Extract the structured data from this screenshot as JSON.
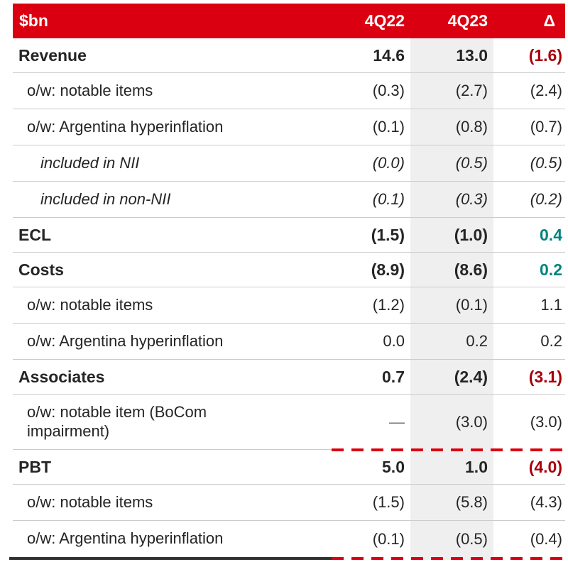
{
  "title": "Quarterly P&L summary table",
  "unit_label": "$bn",
  "colors": {
    "header_bg": "#db0011",
    "header_text": "#ffffff",
    "negative_red": "#a8000b",
    "positive_teal": "#00847f",
    "body_text": "#252525",
    "muted_dash": "#767676",
    "column_band": "#efefef",
    "divider": "#cccccc",
    "dashed_rule_red": "#db0011",
    "end_rule_dark": "#333333"
  },
  "header": {
    "metric": "$bn",
    "prev_period": "4Q22",
    "curr_period": "4Q23",
    "delta": "Δ"
  },
  "rows": [
    {
      "label": "Revenue",
      "indent": 0,
      "emphasis": "main",
      "values": [
        "14.6",
        "13.0",
        "(1.6)"
      ],
      "value_colors": [
        "default",
        "default",
        "red"
      ],
      "divider": "solid"
    },
    {
      "label": "o/w: notable items",
      "indent": 1,
      "emphasis": "sub",
      "values": [
        "(0.3)",
        "(2.7)",
        "(2.4)"
      ],
      "value_colors": [
        "default",
        "default",
        "default"
      ],
      "divider": "solid"
    },
    {
      "label": "o/w: Argentina hyperinflation",
      "indent": 1,
      "emphasis": "sub",
      "values": [
        "(0.1)",
        "(0.8)",
        "(0.7)"
      ],
      "value_colors": [
        "default",
        "default",
        "default"
      ],
      "divider": "solid"
    },
    {
      "label": "included in NII",
      "indent": 2,
      "emphasis": "sub-italic",
      "values": [
        "(0.0)",
        "(0.5)",
        "(0.5)"
      ],
      "value_colors": [
        "default",
        "default",
        "default"
      ],
      "divider": "solid"
    },
    {
      "label": "included in non-NII",
      "indent": 2,
      "emphasis": "sub-italic",
      "values": [
        "(0.1)",
        "(0.3)",
        "(0.2)"
      ],
      "value_colors": [
        "default",
        "default",
        "default"
      ],
      "divider": "solid"
    },
    {
      "label": "ECL",
      "indent": 0,
      "emphasis": "main",
      "values": [
        "(1.5)",
        "(1.0)",
        "0.4"
      ],
      "value_colors": [
        "default",
        "default",
        "teal"
      ],
      "divider": "solid"
    },
    {
      "label": "Costs",
      "indent": 0,
      "emphasis": "main",
      "values": [
        "(8.9)",
        "(8.6)",
        "0.2"
      ],
      "value_colors": [
        "default",
        "default",
        "teal"
      ],
      "divider": "solid"
    },
    {
      "label": "o/w: notable items",
      "indent": 1,
      "emphasis": "sub",
      "values": [
        "(1.2)",
        "(0.1)",
        "1.1"
      ],
      "value_colors": [
        "default",
        "default",
        "default"
      ],
      "divider": "solid"
    },
    {
      "label": "o/w: Argentina hyperinflation",
      "indent": 1,
      "emphasis": "sub",
      "values": [
        "0.0",
        "0.2",
        "0.2"
      ],
      "value_colors": [
        "default",
        "default",
        "default"
      ],
      "divider": "solid"
    },
    {
      "label": "Associates",
      "indent": 0,
      "emphasis": "main",
      "values": [
        "0.7",
        "(2.4)",
        "(3.1)"
      ],
      "value_colors": [
        "default",
        "default",
        "red"
      ],
      "divider": "solid"
    },
    {
      "label": "o/w: notable item (BoCom impairment)",
      "indent": 1,
      "emphasis": "sub",
      "values": [
        "—",
        "(3.0)",
        "(3.0)"
      ],
      "value_colors": [
        "muted",
        "default",
        "default"
      ],
      "divider": "dashed",
      "tall": true
    },
    {
      "label": "PBT",
      "indent": 0,
      "emphasis": "main",
      "values": [
        "5.0",
        "1.0",
        "(4.0)"
      ],
      "value_colors": [
        "default",
        "default",
        "red"
      ],
      "divider": "solid"
    },
    {
      "label": "o/w: notable items",
      "indent": 1,
      "emphasis": "sub",
      "values": [
        "(1.5)",
        "(5.8)",
        "(4.3)"
      ],
      "value_colors": [
        "default",
        "default",
        "default"
      ],
      "divider": "solid"
    },
    {
      "label": "o/w: Argentina hyperinflation",
      "indent": 1,
      "emphasis": "sub",
      "values": [
        "(0.1)",
        "(0.5)",
        "(0.4)"
      ],
      "value_colors": [
        "default",
        "default",
        "default"
      ],
      "divider": "end"
    }
  ]
}
